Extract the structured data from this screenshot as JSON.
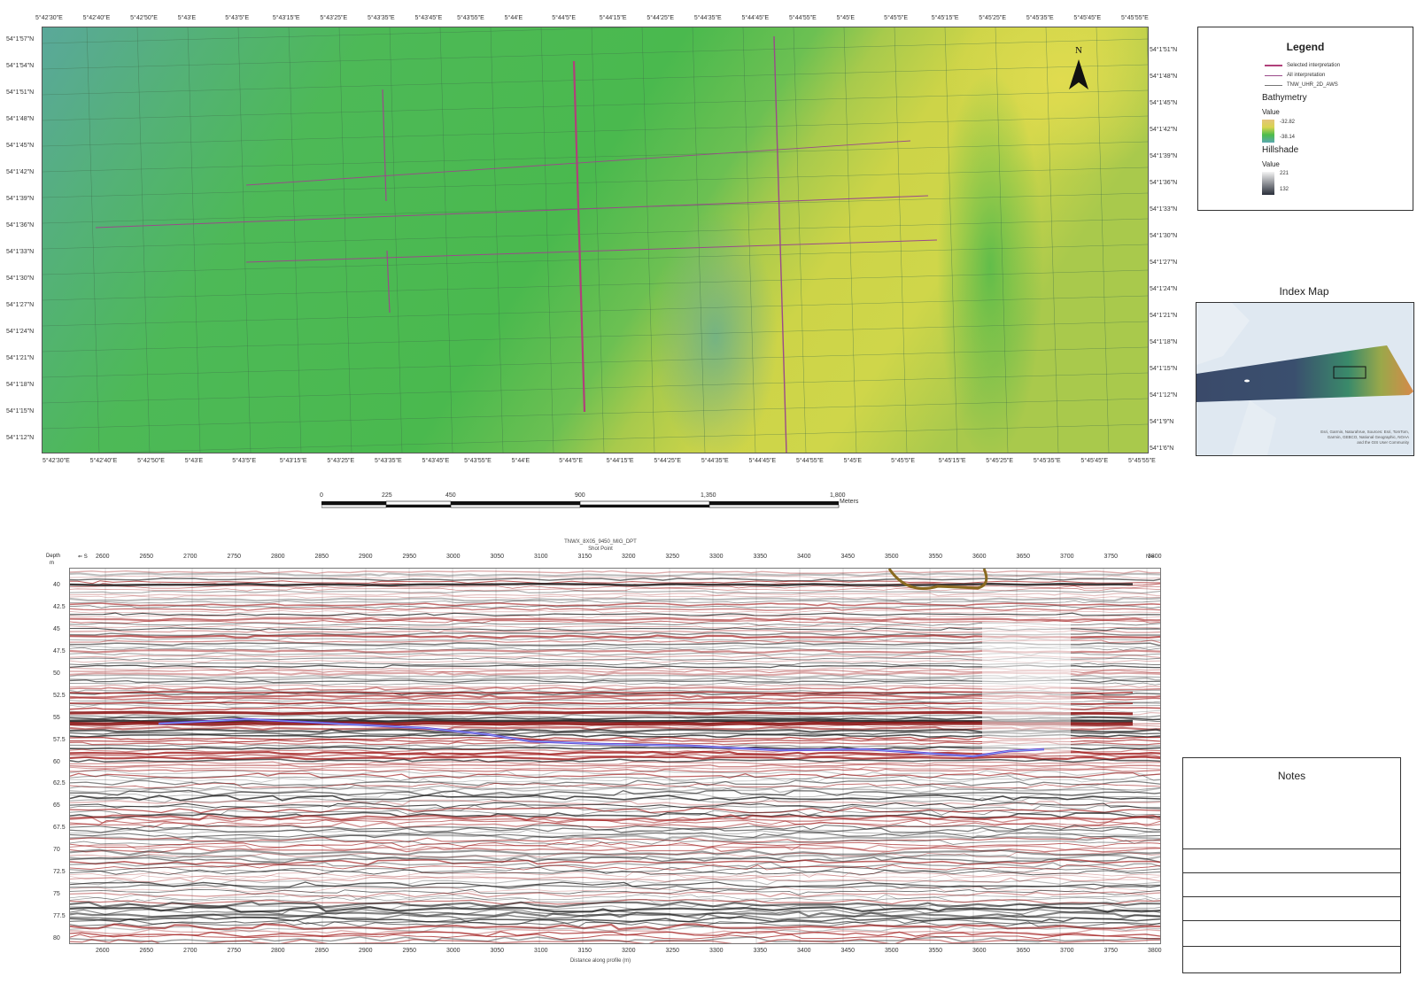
{
  "map": {
    "lon_labels": [
      "5°42'30\"E",
      "5°42'40\"E",
      "5°42'50\"E",
      "5°43'E",
      "5°43'5\"E",
      "5°43'15\"E",
      "5°43'25\"E",
      "5°43'35\"E",
      "5°43'45\"E",
      "5°43'55\"E",
      "5°44'E",
      "5°44'5\"E",
      "5°44'15\"E",
      "5°44'25\"E",
      "5°44'35\"E",
      "5°44'45\"E",
      "5°44'55\"E",
      "5°45'E",
      "5°45'5\"E",
      "5°45'15\"E",
      "5°45'25\"E",
      "5°45'35\"E",
      "5°45'45\"E",
      "5°45'55\"E"
    ],
    "lat_labels_left": [
      "54°1'57\"N",
      "54°1'54\"N",
      "54°1'51\"N",
      "54°1'48\"N",
      "54°1'45\"N",
      "54°1'42\"N",
      "54°1'39\"N",
      "54°1'36\"N",
      "54°1'33\"N",
      "54°1'30\"N",
      "54°1'27\"N",
      "54°1'24\"N",
      "54°1'21\"N",
      "54°1'18\"N",
      "54°1'15\"N",
      "54°1'12\"N"
    ],
    "lat_labels_right": [
      "54°1'51\"N",
      "54°1'48\"N",
      "54°1'45\"N",
      "54°1'42\"N",
      "54°1'39\"N",
      "54°1'36\"N",
      "54°1'33\"N",
      "54°1'30\"N",
      "54°1'27\"N",
      "54°1'24\"N",
      "54°1'21\"N",
      "54°1'18\"N",
      "54°1'15\"N",
      "54°1'12\"N",
      "54°1'9\"N",
      "54°1'6\"N"
    ],
    "north_label": "N",
    "colors": {
      "low": "#5aa89a",
      "mid": "#4cbc4c",
      "high": "#d6d84a",
      "selected": "#b0407a",
      "all": "#8a4a8a"
    }
  },
  "scalebar": {
    "ticks": [
      "0",
      "225",
      "450",
      "900",
      "1,350",
      "1,800"
    ],
    "unit": "Meters"
  },
  "legend": {
    "title": "Legend",
    "items": [
      "Selected interpretation",
      "All interpretation",
      "TNW_UHR_2D_AWS"
    ],
    "bathymetry_title": "Bathymetry",
    "bathymetry_value_label": "Value",
    "bathymetry_values": [
      "-32.82",
      "-38.14"
    ],
    "hillshade_title": "Hillshade",
    "hillshade_value_label": "Value",
    "hillshade_values": [
      "221",
      "132"
    ]
  },
  "index_map": {
    "title": "Index Map",
    "credits": [
      "Esri, Garmin, NaturalVue, Sources: Esri, TomTom,",
      "Garmin, GEBCO, National Geographic, NOAA",
      "and the GIS User Community"
    ]
  },
  "seismic": {
    "title": "TNWX_8X05_9450_MIG_DPT",
    "subtitle": "Shot Point",
    "depth_label": "Depth",
    "depth_unit": "m",
    "left_dir": "⇐ S",
    "right_dir": "N⇒",
    "shot_points": [
      "2600",
      "2650",
      "2700",
      "2750",
      "2800",
      "2850",
      "2900",
      "2950",
      "3000",
      "3050",
      "3100",
      "3150",
      "3200",
      "3250",
      "3300",
      "3350",
      "3400",
      "3450",
      "3500",
      "3550",
      "3600",
      "3650",
      "3700",
      "3750",
      "3800"
    ],
    "depth_values": [
      "40",
      "42.5",
      "45",
      "47.5",
      "50",
      "52.5",
      "55",
      "57.5",
      "60",
      "62.5",
      "65",
      "67.5",
      "70",
      "72.5",
      "75",
      "77.5",
      "80"
    ],
    "distance_values": [
      "2600",
      "2650",
      "2700",
      "2750",
      "2800",
      "2850",
      "2900",
      "2950",
      "3000",
      "3050",
      "3100",
      "3150",
      "3200",
      "3250",
      "3300",
      "3350",
      "3400",
      "3450",
      "3500",
      "3550",
      "3600",
      "3650",
      "3700",
      "3750",
      "3800"
    ],
    "xlabel": "Distance along profile (m)"
  },
  "notes": {
    "title": "Notes"
  }
}
